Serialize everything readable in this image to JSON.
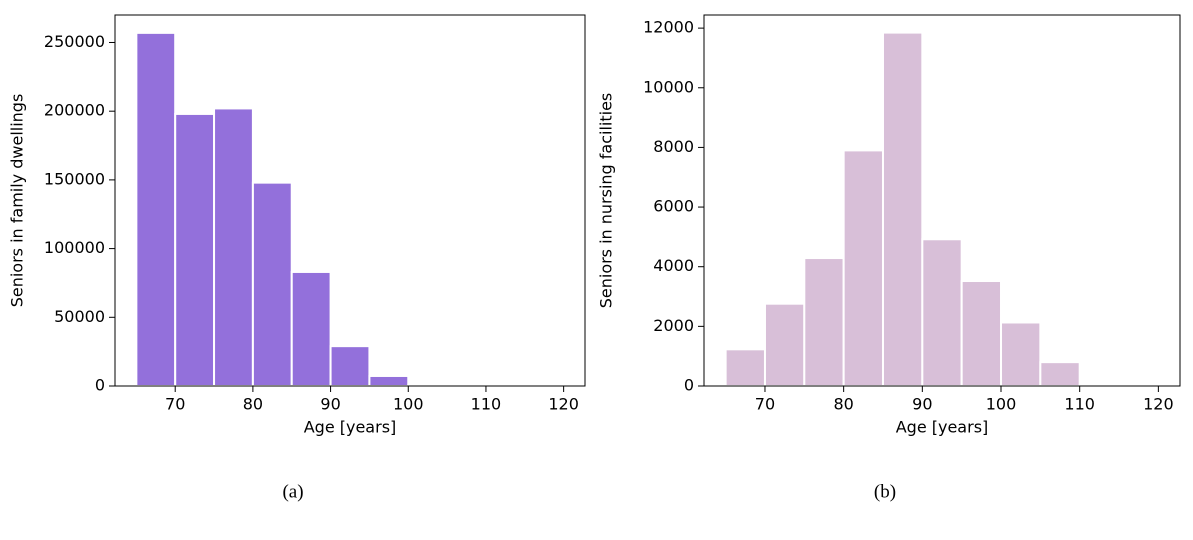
{
  "chart_data": [
    {
      "type": "histogram",
      "caption": "(a)",
      "xlabel": "Age [years]",
      "ylabel": "Seniors in family dwellings",
      "bins": [
        65,
        70,
        75,
        80,
        85,
        90,
        95,
        100,
        105,
        110,
        115,
        120
      ],
      "values": [
        257000,
        198000,
        202000,
        148000,
        83000,
        29000,
        7300,
        500,
        200,
        100,
        50
      ],
      "color": "#9370db",
      "xlim": [
        62.25,
        122.75
      ],
      "xticks": [
        70,
        80,
        90,
        100,
        110,
        120
      ],
      "ylim": [
        0,
        270000
      ],
      "yticks": [
        0,
        50000,
        100000,
        150000,
        200000,
        250000
      ]
    },
    {
      "type": "histogram",
      "caption": "(b)",
      "xlabel": "Age [years]",
      "ylabel": "Seniors in nursing facilities",
      "bins": [
        65,
        70,
        75,
        80,
        85,
        90,
        95,
        100,
        105,
        110,
        115,
        120
      ],
      "values": [
        1230,
        2760,
        4290,
        7900,
        11850,
        4920,
        3520,
        2130,
        800,
        20,
        5
      ],
      "color": "#d8bfd8",
      "xlim": [
        62.25,
        122.75
      ],
      "xticks": [
        70,
        80,
        90,
        100,
        110,
        120
      ],
      "ylim": [
        0,
        12440
      ],
      "yticks": [
        0,
        2000,
        4000,
        6000,
        8000,
        10000,
        12000
      ]
    }
  ]
}
